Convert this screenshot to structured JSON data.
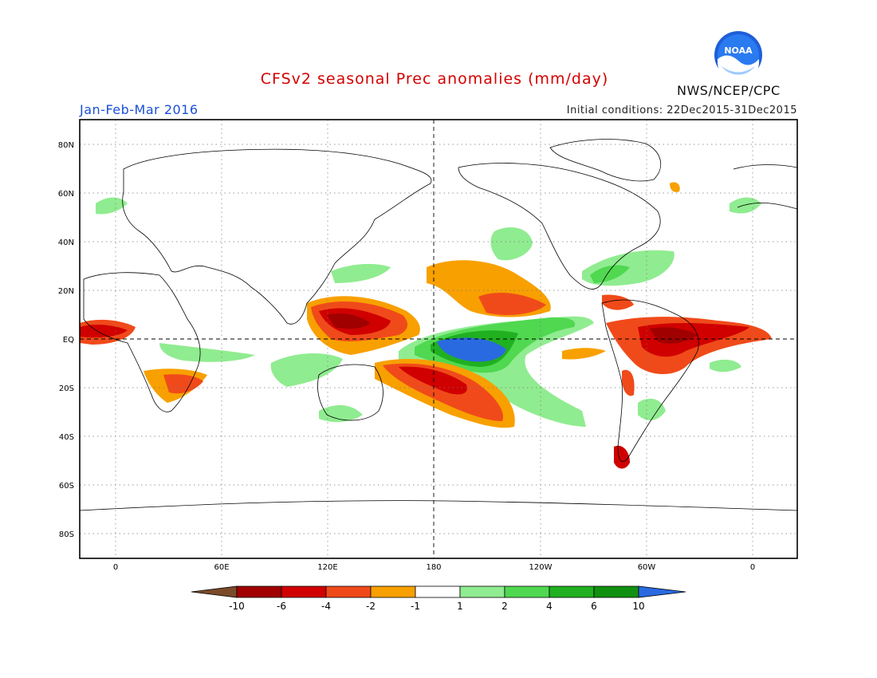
{
  "header": {
    "title": "CFSv2 seasonal Prec anomalies (mm/day)",
    "period": "Jan-Feb-Mar 2016",
    "initial_conditions": "Initial conditions: 22Dec2015-31Dec2015",
    "agency": "NWS/NCEP/CPC",
    "logo_text": "NOAA"
  },
  "map": {
    "lat_labels": [
      "80N",
      "60N",
      "40N",
      "20N",
      "EQ",
      "20S",
      "40S",
      "60S",
      "80S"
    ],
    "lon_labels": [
      "0",
      "60E",
      "120E",
      "180",
      "120W",
      "60W",
      "0"
    ]
  },
  "legend": {
    "labels": [
      "-10",
      "-6",
      "-4",
      "-2",
      "-1",
      "1",
      "2",
      "4",
      "6",
      "10"
    ],
    "colors": [
      "#7a4a2a",
      "#a00000",
      "#d00000",
      "#f04a1a",
      "#f8a000",
      "#ffffff",
      "#90ec90",
      "#50d850",
      "#20b020",
      "#109010",
      "#2a6ae0"
    ]
  }
}
